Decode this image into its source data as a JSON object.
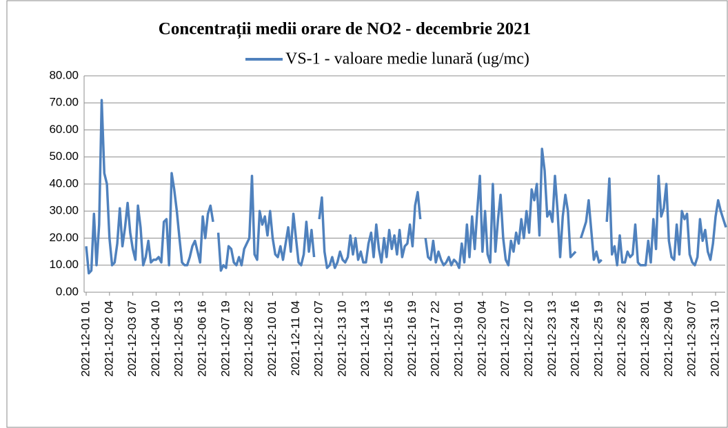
{
  "chart_data": {
    "type": "line",
    "title": "Concentrații  medii orare de NO2 - decembrie 2021",
    "categories": [
      "2021-12-01 01",
      null,
      null,
      null,
      null,
      null,
      null,
      null,
      null,
      "2021-12-02 04",
      null,
      null,
      null,
      null,
      null,
      null,
      null,
      null,
      "2021-12-03 07",
      null,
      null,
      null,
      null,
      null,
      null,
      null,
      null,
      "2021-12-04 10",
      null,
      null,
      null,
      null,
      null,
      null,
      null,
      null,
      "2021-12-05 13",
      null,
      null,
      null,
      null,
      null,
      null,
      null,
      null,
      "2021-12-06 16",
      null,
      null,
      null,
      null,
      null,
      null,
      null,
      null,
      "2021-12-07 19",
      null,
      null,
      null,
      null,
      null,
      null,
      null,
      null,
      "2021-12-08 22",
      null,
      null,
      null,
      null,
      null,
      null,
      null,
      null,
      "2021-12-10 01",
      null,
      null,
      null,
      null,
      null,
      null,
      null,
      null,
      "2021-12-11 04",
      null,
      null,
      null,
      null,
      null,
      null,
      null,
      null,
      "2021-12-12 07",
      null,
      null,
      null,
      null,
      null,
      null,
      null,
      null,
      "2021-12-13 10",
      null,
      null,
      null,
      null,
      null,
      null,
      null,
      null,
      "2021-12-14 13",
      null,
      null,
      null,
      null,
      null,
      null,
      null,
      null,
      "2021-12-15 16",
      null,
      null,
      null,
      null,
      null,
      null,
      null,
      null,
      "2021-12-16 19",
      null,
      null,
      null,
      null,
      null,
      null,
      null,
      null,
      "2021-12-17 22",
      null,
      null,
      null,
      null,
      null,
      null,
      null,
      null,
      "2021-12-19 01",
      null,
      null,
      null,
      null,
      null,
      null,
      null,
      null,
      "2021-12-20 04",
      null,
      null,
      null,
      null,
      null,
      null,
      null,
      null,
      "2021-12-21 07",
      null,
      null,
      null,
      null,
      null,
      null,
      null,
      null,
      "2021-12-22 10",
      null,
      null,
      null,
      null,
      null,
      null,
      null,
      null,
      "2021-12-23 13",
      null,
      null,
      null,
      null,
      null,
      null,
      null,
      null,
      "2021-12-24 16",
      null,
      null,
      null,
      null,
      null,
      null,
      null,
      null,
      "2021-12-25 19",
      null,
      null,
      null,
      null,
      null,
      null,
      null,
      null,
      "2021-12-26 22",
      null,
      null,
      null,
      null,
      null,
      null,
      null,
      null,
      "2021-12-28 01",
      null,
      null,
      null,
      null,
      null,
      null,
      null,
      null,
      "2021-12-29 04",
      null,
      null,
      null,
      null,
      null,
      null,
      null,
      null,
      "2021-12-30 07",
      null,
      null,
      null,
      null,
      null,
      null,
      null,
      null,
      "2021-12-31 10",
      null,
      null,
      null,
      null
    ],
    "series": [
      {
        "name": "VS-1 - valoare medie lunară (ug/mc)",
        "color": "#4f81bd",
        "values": [
          17,
          7,
          8,
          29,
          10,
          25,
          71,
          44,
          40,
          20,
          10,
          11,
          18,
          31,
          17,
          24,
          33,
          22,
          16,
          12,
          32,
          24,
          10,
          13,
          19,
          11,
          12,
          12,
          13,
          11,
          26,
          27,
          10,
          44,
          38,
          30,
          20,
          11,
          10,
          10,
          13,
          17,
          19,
          15,
          11,
          28,
          20,
          29,
          32,
          26,
          null,
          22,
          8,
          10,
          9,
          17,
          16,
          11,
          10,
          13,
          10,
          16,
          18,
          20,
          43,
          14,
          12,
          30,
          25,
          28,
          21,
          30,
          20,
          14,
          13,
          17,
          12,
          18,
          24,
          15,
          29,
          20,
          11,
          10,
          14,
          26,
          15,
          23,
          13,
          null,
          27,
          35,
          15,
          9,
          10,
          13,
          9,
          11,
          15,
          12,
          11,
          13,
          21,
          14,
          20,
          12,
          15,
          11,
          11,
          18,
          22,
          13,
          25,
          16,
          11,
          20,
          13,
          23,
          16,
          21,
          14,
          23,
          13,
          17,
          18,
          25,
          17,
          32,
          37,
          27,
          null,
          20,
          13,
          12,
          19,
          11,
          15,
          12,
          10,
          11,
          13,
          10,
          12,
          11,
          9,
          18,
          11,
          25,
          13,
          28,
          16,
          30,
          43,
          15,
          30,
          14,
          11,
          40,
          15,
          27,
          36,
          20,
          12,
          10,
          19,
          15,
          22,
          18,
          27,
          20,
          30,
          22,
          38,
          34,
          40,
          21,
          53,
          45,
          28,
          30,
          26,
          43,
          30,
          13,
          28,
          36,
          30,
          13,
          14,
          15,
          null,
          20,
          23,
          26,
          34,
          23,
          12,
          15,
          11,
          12,
          null,
          26,
          42,
          14,
          17,
          10,
          21,
          11,
          11,
          15,
          13,
          14,
          25,
          11,
          10,
          10,
          10,
          19,
          11,
          27,
          16,
          43,
          28,
          31,
          40,
          19,
          13,
          12,
          25,
          14,
          30,
          27,
          29,
          14,
          11,
          10,
          13,
          27,
          19,
          23,
          15,
          12,
          18,
          28,
          34,
          30,
          27,
          24
        ]
      }
    ],
    "ylim": [
      0,
      80
    ],
    "yticks": [
      {
        "value": 0,
        "label": "0.00"
      },
      {
        "value": 10,
        "label": "10.00"
      },
      {
        "value": 20,
        "label": "20.00"
      },
      {
        "value": 30,
        "label": "30.00"
      },
      {
        "value": 40,
        "label": "40.00"
      },
      {
        "value": 50,
        "label": "50.00"
      },
      {
        "value": 60,
        "label": "60.00"
      },
      {
        "value": 70,
        "label": "70.00"
      },
      {
        "value": 80,
        "label": "80.00"
      }
    ],
    "grid": true
  }
}
